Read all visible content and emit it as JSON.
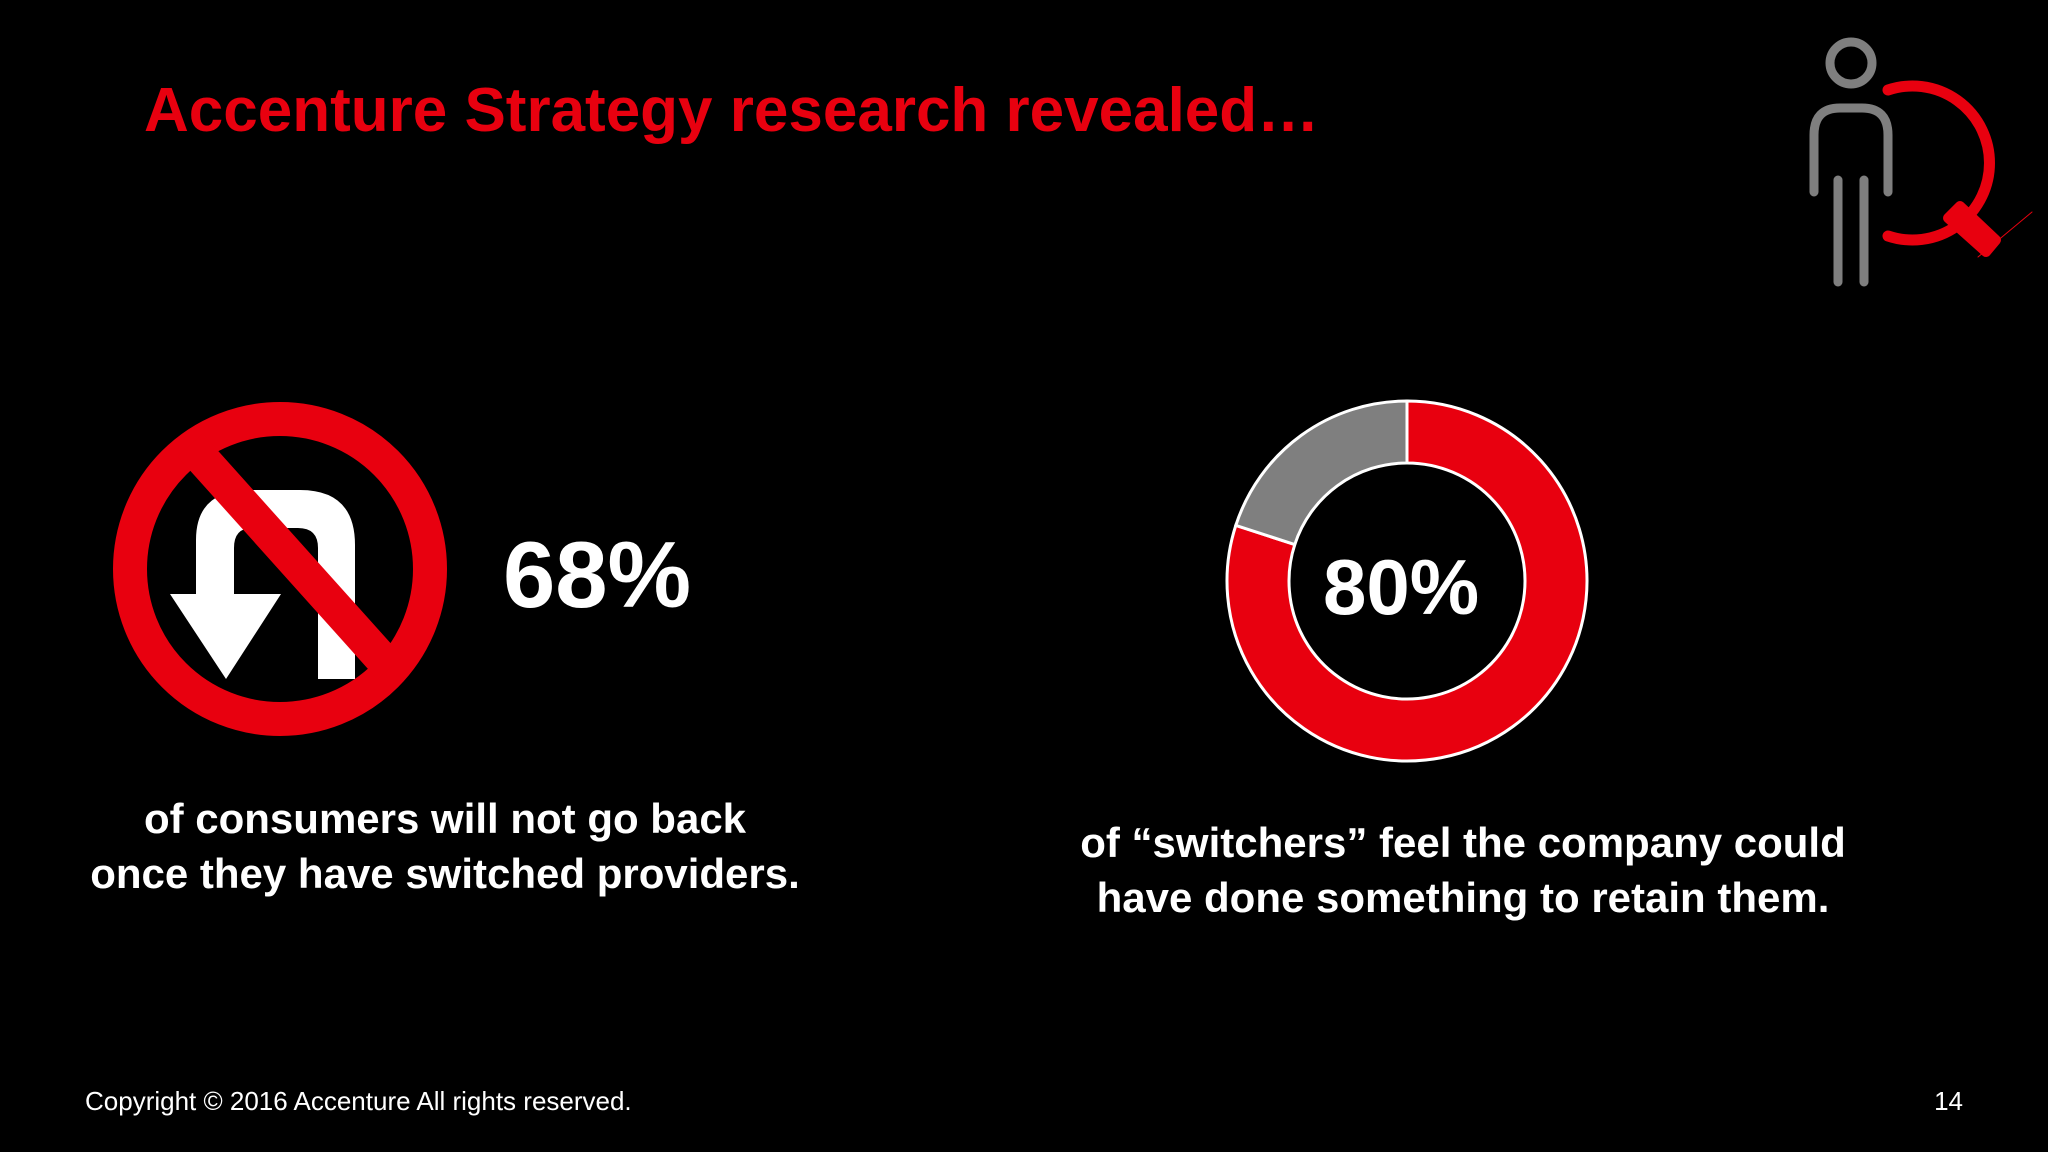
{
  "title": "Accenture Strategy research revealed…",
  "stat_left": {
    "label": "68%",
    "caption": [
      "of consumers will not go back",
      "once they have switched providers."
    ]
  },
  "stat_right": {
    "type": "donut",
    "value": 80,
    "label": "80%",
    "color": "#e8000f",
    "rest_color": "#7f7f7f",
    "caption": [
      "of “switchers” feel the company could",
      "have done something to retain them."
    ]
  },
  "footer": {
    "copyright": "Copyright © 2016 Accenture  All rights reserved.",
    "page": "14"
  }
}
